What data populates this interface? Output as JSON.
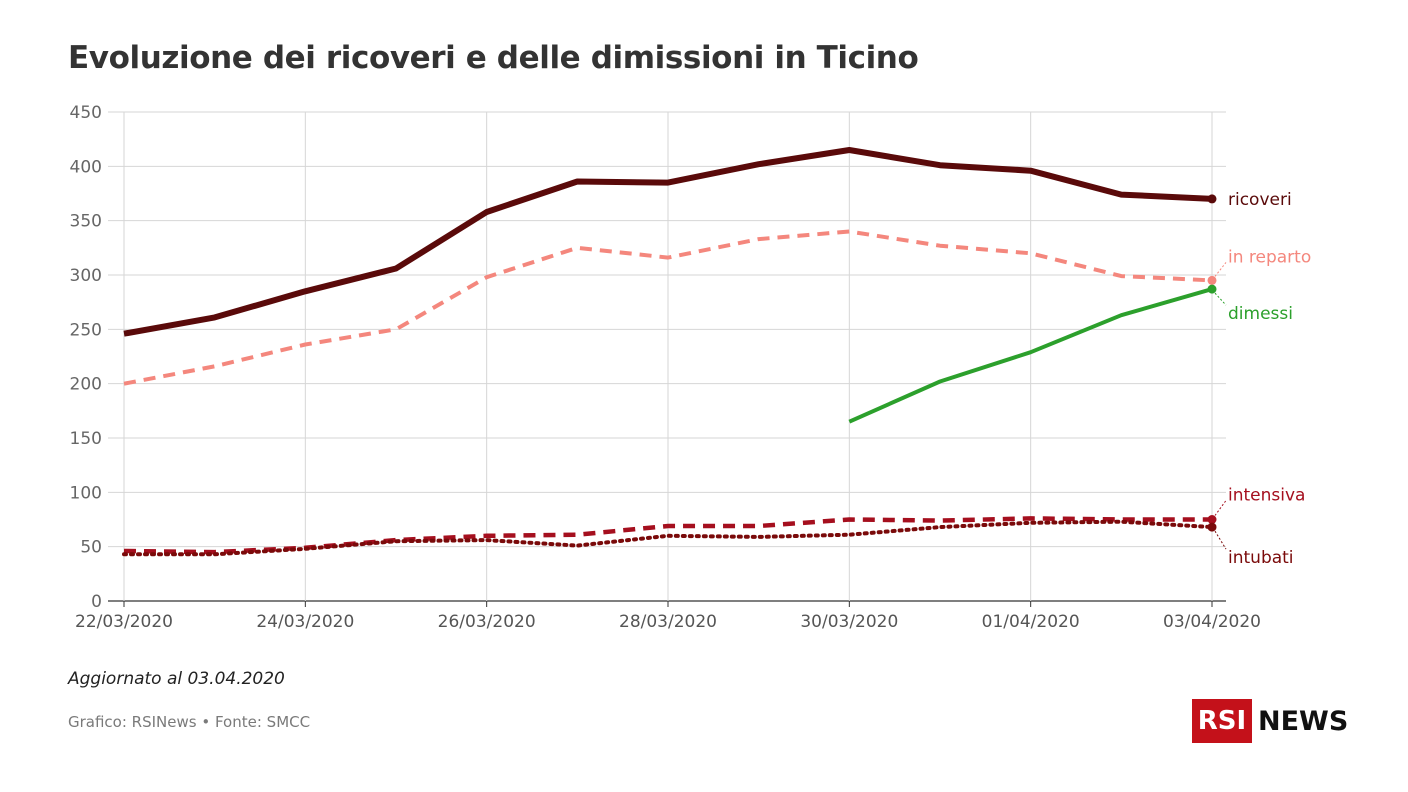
{
  "title": "Evoluzione dei ricoveri e delle dimissioni in Ticino",
  "updated": "Aggiornato al 03.04.2020",
  "source": "Grafico: RSINews • Fonte: SMCC",
  "logo": {
    "box": "RSI",
    "word": "NEWS"
  },
  "chart_data": {
    "type": "line",
    "x": [
      "22/03/2020",
      "23/03/2020",
      "24/03/2020",
      "25/03/2020",
      "26/03/2020",
      "27/03/2020",
      "28/03/2020",
      "29/03/2020",
      "30/03/2020",
      "31/03/2020",
      "01/04/2020",
      "02/04/2020",
      "03/04/2020"
    ],
    "x_tick_labels": [
      "22/03/2020",
      "24/03/2020",
      "26/03/2020",
      "28/03/2020",
      "30/03/2020",
      "01/04/2020",
      "03/04/2020"
    ],
    "ylim": [
      0,
      450
    ],
    "y_ticks": [
      0,
      50,
      100,
      150,
      200,
      250,
      300,
      350,
      400,
      450
    ],
    "grid": true,
    "series": [
      {
        "name": "ricoveri",
        "color": "#5a0a0a",
        "style": "solid",
        "values": [
          246,
          261,
          285,
          306,
          358,
          386,
          385,
          402,
          415,
          401,
          396,
          374,
          370
        ]
      },
      {
        "name": "in reparto",
        "color": "#f4877d",
        "style": "dashed",
        "values": [
          200,
          216,
          236,
          250,
          298,
          325,
          316,
          333,
          340,
          327,
          320,
          299,
          295
        ]
      },
      {
        "name": "dimessi",
        "color": "#2ca02c",
        "style": "solid",
        "values": [
          null,
          null,
          null,
          null,
          null,
          null,
          null,
          null,
          165,
          202,
          229,
          263,
          287
        ]
      },
      {
        "name": "intensiva",
        "color": "#a50f1e",
        "style": "dashed",
        "values": [
          46,
          45,
          49,
          56,
          60,
          61,
          69,
          69,
          75,
          74,
          76,
          75,
          75
        ]
      },
      {
        "name": "intubati",
        "color": "#7a0a0a",
        "style": "dotted",
        "values": [
          43,
          43,
          48,
          55,
          56,
          51,
          60,
          59,
          61,
          68,
          72,
          73,
          68
        ]
      }
    ]
  }
}
